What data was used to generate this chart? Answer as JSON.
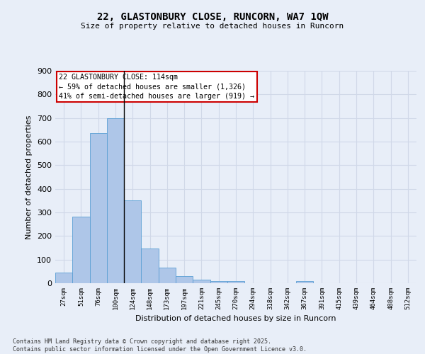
{
  "title_line1": "22, GLASTONBURY CLOSE, RUNCORN, WA7 1QW",
  "title_line2": "Size of property relative to detached houses in Runcorn",
  "xlabel": "Distribution of detached houses by size in Runcorn",
  "ylabel": "Number of detached properties",
  "categories": [
    "27sqm",
    "51sqm",
    "76sqm",
    "100sqm",
    "124sqm",
    "148sqm",
    "173sqm",
    "197sqm",
    "221sqm",
    "245sqm",
    "270sqm",
    "294sqm",
    "318sqm",
    "342sqm",
    "367sqm",
    "391sqm",
    "415sqm",
    "439sqm",
    "464sqm",
    "488sqm",
    "512sqm"
  ],
  "values": [
    44,
    282,
    635,
    700,
    350,
    146,
    65,
    30,
    14,
    10,
    8,
    0,
    0,
    0,
    8,
    0,
    0,
    0,
    0,
    0,
    0
  ],
  "bar_color": "#aec6e8",
  "bar_edge_color": "#5a9fd4",
  "annotation_title": "22 GLASTONBURY CLOSE: 114sqm",
  "annotation_line1": "← 59% of detached houses are smaller (1,326)",
  "annotation_line2": "41% of semi-detached houses are larger (919) →",
  "annotation_box_color": "#cc0000",
  "ylim": [
    0,
    900
  ],
  "yticks": [
    0,
    100,
    200,
    300,
    400,
    500,
    600,
    700,
    800,
    900
  ],
  "grid_color": "#d0d8e8",
  "background_color": "#e8eef8",
  "plot_bg_color": "#e8eef8",
  "footer_line1": "Contains HM Land Registry data © Crown copyright and database right 2025.",
  "footer_line2": "Contains public sector information licensed under the Open Government Licence v3.0."
}
